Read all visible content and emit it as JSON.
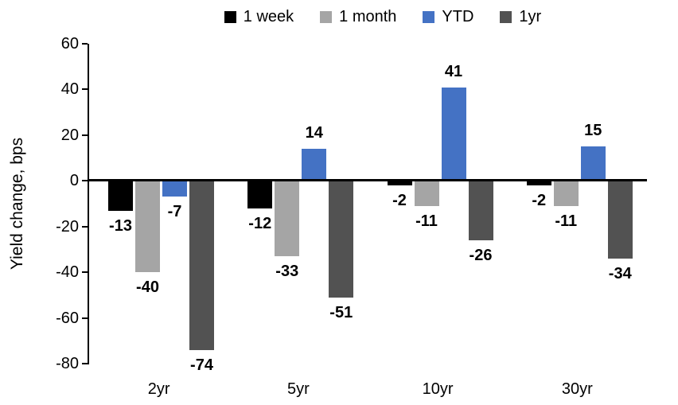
{
  "chart_data": {
    "type": "bar",
    "title": "",
    "categories": [
      "2yr",
      "5yr",
      "10yr",
      "30yr"
    ],
    "series": [
      {
        "name": "1 week",
        "color": "#000000",
        "values": [
          -13,
          -12,
          -2,
          -2
        ]
      },
      {
        "name": "1 month",
        "color": "#A5A5A5",
        "values": [
          -40,
          -33,
          -11,
          -11
        ]
      },
      {
        "name": "YTD",
        "color": "#4472C4",
        "values": [
          -7,
          14,
          41,
          15
        ]
      },
      {
        "name": "1yr",
        "color": "#525252",
        "values": [
          -74,
          -51,
          -26,
          -34
        ]
      }
    ],
    "xlabel": "",
    "ylabel": "Yield change, bps",
    "ylim": [
      -80,
      60
    ],
    "yticks": [
      60,
      40,
      20,
      0,
      -20,
      -40,
      -60,
      -80
    ],
    "grid": false,
    "legend_position": "top",
    "data_labels": "outside-end, bold"
  }
}
